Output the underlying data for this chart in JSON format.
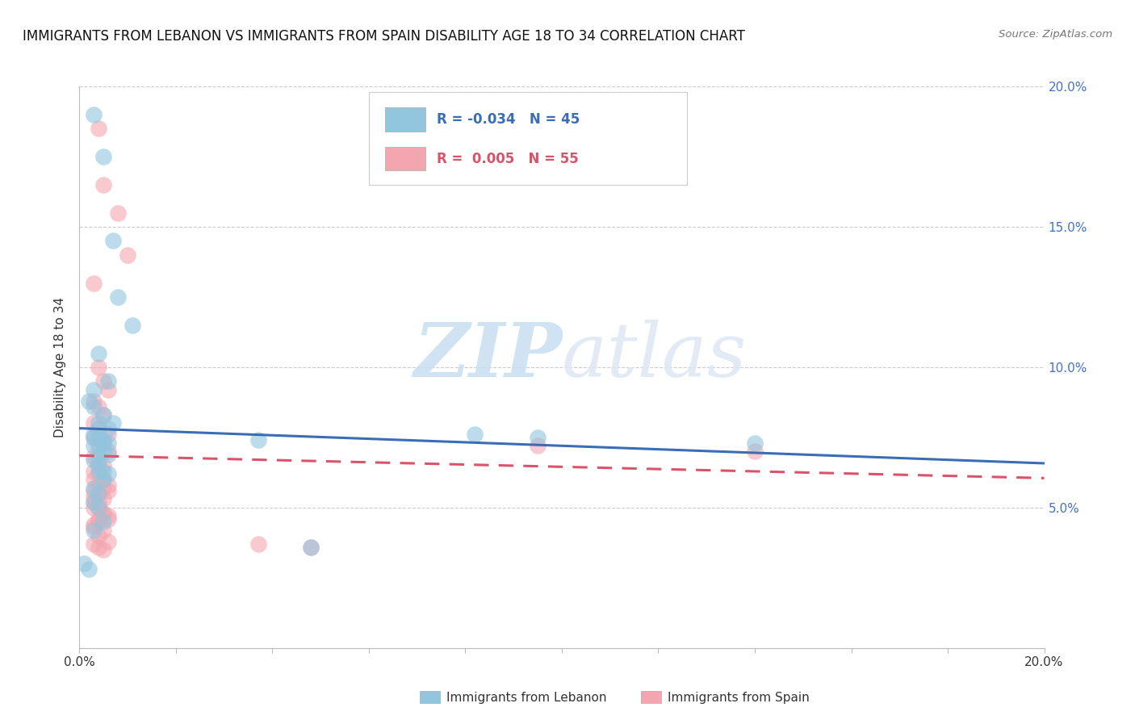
{
  "title": "IMMIGRANTS FROM LEBANON VS IMMIGRANTS FROM SPAIN DISABILITY AGE 18 TO 34 CORRELATION CHART",
  "source": "Source: ZipAtlas.com",
  "ylabel": "Disability Age 18 to 34",
  "xmin": 0.0,
  "xmax": 0.2,
  "ymin": 0.0,
  "ymax": 0.2,
  "ytick_positions": [
    0.05,
    0.1,
    0.15,
    0.2
  ],
  "ytick_labels": [
    "5.0%",
    "10.0%",
    "15.0%",
    "20.0%"
  ],
  "xtick_labels_left": "0.0%",
  "xtick_labels_right": "20.0%",
  "legend_blue_r": "-0.034",
  "legend_blue_n": "45",
  "legend_pink_r": "0.005",
  "legend_pink_n": "55",
  "legend_label_blue": "Immigrants from Lebanon",
  "legend_label_pink": "Immigrants from Spain",
  "blue_color": "#92c5de",
  "pink_color": "#f4a6b0",
  "trendline_blue_color": "#3a6db5",
  "trendline_pink_color": "#d9536a",
  "watermark_zip": "ZIP",
  "watermark_atlas": "atlas",
  "grid_color": "#cccccc",
  "right_tick_color": "#4472c4",
  "lebanon_x": [
    0.003,
    0.005,
    0.007,
    0.008,
    0.011,
    0.004,
    0.006,
    0.003,
    0.002,
    0.003,
    0.005,
    0.004,
    0.006,
    0.003,
    0.004,
    0.005,
    0.003,
    0.004,
    0.005,
    0.006,
    0.004,
    0.003,
    0.004,
    0.005,
    0.006,
    0.007,
    0.004,
    0.003,
    0.005,
    0.006,
    0.004,
    0.005,
    0.003,
    0.004,
    0.003,
    0.004,
    0.005,
    0.003,
    0.082,
    0.095,
    0.037,
    0.14,
    0.048,
    0.001,
    0.002
  ],
  "lebanon_y": [
    0.19,
    0.175,
    0.145,
    0.125,
    0.115,
    0.105,
    0.095,
    0.092,
    0.088,
    0.086,
    0.083,
    0.08,
    0.078,
    0.075,
    0.075,
    0.073,
    0.072,
    0.072,
    0.07,
    0.069,
    0.068,
    0.067,
    0.065,
    0.063,
    0.062,
    0.08,
    0.078,
    0.076,
    0.074,
    0.073,
    0.063,
    0.06,
    0.057,
    0.055,
    0.052,
    0.05,
    0.045,
    0.042,
    0.076,
    0.075,
    0.074,
    0.073,
    0.036,
    0.03,
    0.028
  ],
  "spain_x": [
    0.004,
    0.005,
    0.008,
    0.01,
    0.003,
    0.004,
    0.005,
    0.006,
    0.003,
    0.004,
    0.005,
    0.003,
    0.004,
    0.006,
    0.003,
    0.005,
    0.004,
    0.006,
    0.003,
    0.004,
    0.005,
    0.003,
    0.004,
    0.005,
    0.006,
    0.003,
    0.004,
    0.005,
    0.003,
    0.004,
    0.005,
    0.006,
    0.004,
    0.003,
    0.005,
    0.004,
    0.006,
    0.003,
    0.004,
    0.005,
    0.095,
    0.14,
    0.037,
    0.048,
    0.003,
    0.004,
    0.005,
    0.006,
    0.003,
    0.004,
    0.003,
    0.005,
    0.006,
    0.004,
    0.003
  ],
  "spain_y": [
    0.185,
    0.165,
    0.155,
    0.14,
    0.13,
    0.1,
    0.095,
    0.092,
    0.088,
    0.086,
    0.083,
    0.08,
    0.078,
    0.076,
    0.075,
    0.073,
    0.072,
    0.07,
    0.068,
    0.066,
    0.065,
    0.063,
    0.062,
    0.06,
    0.058,
    0.056,
    0.055,
    0.053,
    0.052,
    0.05,
    0.048,
    0.046,
    0.045,
    0.043,
    0.042,
    0.04,
    0.038,
    0.037,
    0.036,
    0.035,
    0.072,
    0.07,
    0.037,
    0.036,
    0.06,
    0.058,
    0.057,
    0.056,
    0.054,
    0.052,
    0.05,
    0.048,
    0.047,
    0.046,
    0.044
  ],
  "trendline_blue_y0": 0.075,
  "trendline_blue_y1": 0.072,
  "trendline_pink_y0": 0.068,
  "trendline_pink_y1": 0.069
}
